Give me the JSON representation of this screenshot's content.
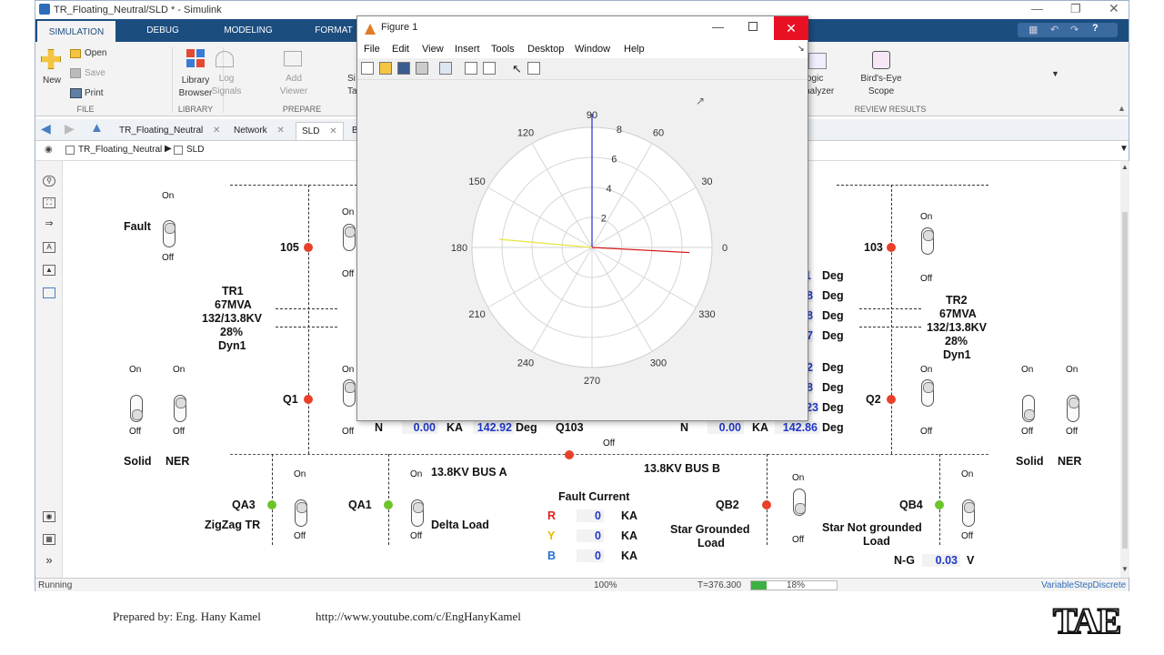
{
  "window": {
    "title": "TR_Floating_Neutral/SLD * - Simulink"
  },
  "ribbon": {
    "tabs": [
      "SIMULATION",
      "DEBUG",
      "MODELING",
      "FORMAT"
    ],
    "file": {
      "open": "Open",
      "save": "Save",
      "print": "Print",
      "new": "New",
      "group": "FILE"
    },
    "library": {
      "label1": "Library",
      "label2": "Browser",
      "group": "LIBRARY"
    },
    "prepare": {
      "log1": "Log",
      "log2": "Signals",
      "add1": "Add",
      "add2": "Viewer",
      "si": "Si",
      "ta": "Ta",
      "group": "PREPARE"
    },
    "review": {
      "logic1": "ogic",
      "logic2": "nalyzer",
      "bird1": "Bird's-Eye",
      "bird2": "Scope",
      "group": "REVIEW RESULTS"
    }
  },
  "doc_tabs": [
    "TR_Floating_Neutral",
    "Network",
    "SLD",
    "B"
  ],
  "breadcrumb": {
    "root": "TR_Floating_Neutral",
    "child": "SLD"
  },
  "figure": {
    "title": "Figure 1",
    "menu": [
      "File",
      "Edit",
      "View",
      "Insert",
      "Tools",
      "Desktop",
      "Window",
      "Help"
    ]
  },
  "chart_data": {
    "type": "polar",
    "theta_ticks": [
      "0",
      "30",
      "60",
      "90",
      "120",
      "150",
      "180",
      "210",
      "240",
      "270",
      "300",
      "330"
    ],
    "r_ticks": [
      "2",
      "4",
      "6",
      "8"
    ],
    "rlim": [
      0,
      8
    ],
    "grid": true,
    "series": [
      {
        "color": "#3b3bd0",
        "angle_deg": 90,
        "magnitude": 8.9
      },
      {
        "color": "#d81d1d",
        "angle_deg": -3,
        "magnitude": 6.5
      },
      {
        "color": "#e8e84a",
        "angle_deg": 175,
        "magnitude": 6.2
      }
    ]
  },
  "sld": {
    "fault": {
      "label": "Fault",
      "on": "On",
      "off": "Off"
    },
    "tr1": {
      "name": "TR1",
      "rating": "67MVA",
      "voltage": "132/13.8KV",
      "z": "28%",
      "vector": "Dyn1"
    },
    "tr2": {
      "name": "TR2",
      "rating": "67MVA",
      "voltage": "132/13.8KV",
      "z": "28%",
      "vector": "Dyn1"
    },
    "breakers": {
      "b105": "105",
      "b103": "103",
      "q1": "Q1",
      "q2": "Q2",
      "qa3": "QA3",
      "qa1": "QA1",
      "qb2": "QB2",
      "qb4": "QB4",
      "q103": "Q103"
    },
    "on": "On",
    "off": "Off",
    "solid": "Solid",
    "ner": "NER",
    "zigzag": "ZigZag TR",
    "delta_load": "Delta Load",
    "star_grounded": "Star Grounded",
    "star_grounded2": "Load",
    "star_not_grounded": "Star Not grounded",
    "star_not_grounded2": "Load",
    "bus_a": "13.8KV BUS A",
    "bus_b": "13.8KV BUS B",
    "fault_current": {
      "title": "Fault Current",
      "R": "R",
      "Y": "Y",
      "B": "B",
      "r_val": "0",
      "y_val": "0",
      "b_val": "0",
      "unit": "KA"
    },
    "ng": {
      "label": "N-G",
      "value": "0.03",
      "unit": "V"
    },
    "deg": "Deg",
    "ka": "KA",
    "n": "N",
    "n_left": {
      "ka": "0.00",
      "deg": "142.92"
    },
    "n_right": {
      "ka": "0.00",
      "deg": "142.86"
    },
    "partial": [
      "1",
      "8",
      "8",
      "7",
      "2",
      "8",
      "23"
    ]
  },
  "status": {
    "state": "Running",
    "zoom": "100%",
    "time": "T=376.300",
    "progress": "18%",
    "solver": "VariableStepDiscrete",
    "progress_frac": 0.18
  },
  "footer": {
    "author": "Prepared by: Eng. Hany Kamel",
    "url": "http://www.youtube.com/c/EngHanyKamel",
    "logo": "TAE"
  }
}
